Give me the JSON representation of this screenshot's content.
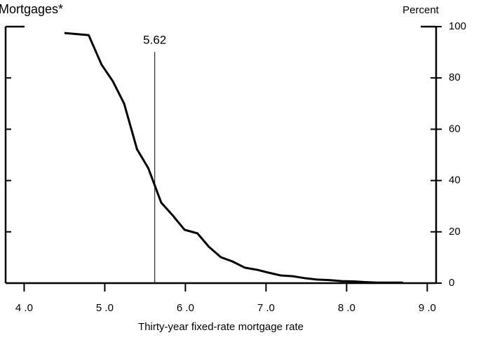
{
  "chart_data": {
    "type": "line",
    "title": "Mortgages*",
    "ylabel": "Percent",
    "xlabel": "Thirty-year fixed-rate mortgage rate",
    "x": [
      4.5,
      4.8,
      4.96,
      5.1,
      5.24,
      5.4,
      5.54,
      5.7,
      5.84,
      5.99,
      6.15,
      6.29,
      6.44,
      6.58,
      6.74,
      6.89,
      7.03,
      7.18,
      7.33,
      7.49,
      7.63,
      7.78,
      7.94,
      8.08,
      8.23,
      8.38,
      8.53,
      8.7
    ],
    "series": [
      {
        "color": "#000000",
        "values": [
          97.5,
          96.7,
          85.2,
          78.7,
          70,
          52.2,
          44.8,
          31.4,
          26.5,
          20.8,
          19.4,
          14.2,
          10.1,
          8.5,
          6,
          5.2,
          4.1,
          3,
          2.7,
          1.9,
          1.4,
          1.2,
          0.8,
          0.7,
          0.4,
          0.2,
          0.2,
          0.2
        ]
      }
    ],
    "xlim": [
      3.77,
      9.11
    ],
    "ylim": [
      0,
      100
    ],
    "xticks": [
      {
        "value": 4,
        "label": "4 .0"
      },
      {
        "value": 5,
        "label": "5 .0"
      },
      {
        "value": 6,
        "label": "6 .0"
      },
      {
        "value": 7,
        "label": "7 .0"
      },
      {
        "value": 8,
        "label": "8 .0"
      },
      {
        "value": 9,
        "label": "9 .0"
      }
    ],
    "yticks": [
      0,
      20,
      40,
      60,
      80,
      100
    ],
    "vline": 5.62
  }
}
